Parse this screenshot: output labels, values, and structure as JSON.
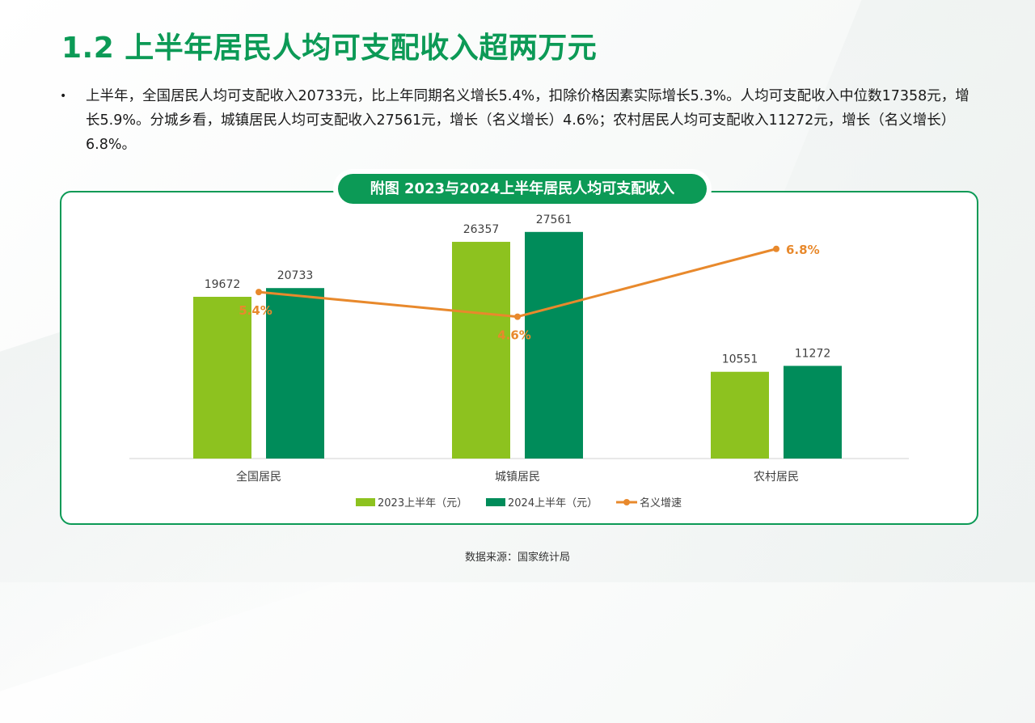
{
  "header": {
    "title": "1.2 上半年居民人均可支配收入超两万元"
  },
  "bullet": {
    "marker": "•",
    "text": "上半年，全国居民人均可支配收入20733元，比上年同期名义增长5.4%，扣除价格因素实际增长5.3%。人均可支配收入中位数17358元，增长5.9%。分城乡看，城镇居民人均可支配收入27561元，增长（名义增长）4.6%；农村居民人均可支配收入11272元，增长（名义增长）6.8%。"
  },
  "chart_data": {
    "type": "bar",
    "title": "附图 2023与2024上半年居民人均可支配收入",
    "categories": [
      "全国居民",
      "城镇居民",
      "农村居民"
    ],
    "series": [
      {
        "name": "2023上半年（元）",
        "type": "bar",
        "values": [
          19672,
          26357,
          10551
        ],
        "labels": [
          "19672",
          "26357",
          "10551"
        ],
        "color": "#8dc21f"
      },
      {
        "name": "2024上半年（元）",
        "type": "bar",
        "values": [
          20733,
          27561,
          11272
        ],
        "labels": [
          "20733",
          "27561",
          "11272"
        ],
        "color": "#008c5a"
      },
      {
        "name": "名义增速",
        "type": "line",
        "axis": "secondary",
        "values": [
          5.4,
          4.6,
          6.8
        ],
        "labels": [
          "5.4%",
          "4.6%",
          "6.8%"
        ],
        "color": "#e8892c"
      }
    ],
    "ylim": [
      0,
      30000
    ],
    "y2lim": [
      0,
      8
    ],
    "legend_position": "bottom",
    "grid": false
  },
  "source": {
    "text": "数据来源：国家统计局"
  }
}
